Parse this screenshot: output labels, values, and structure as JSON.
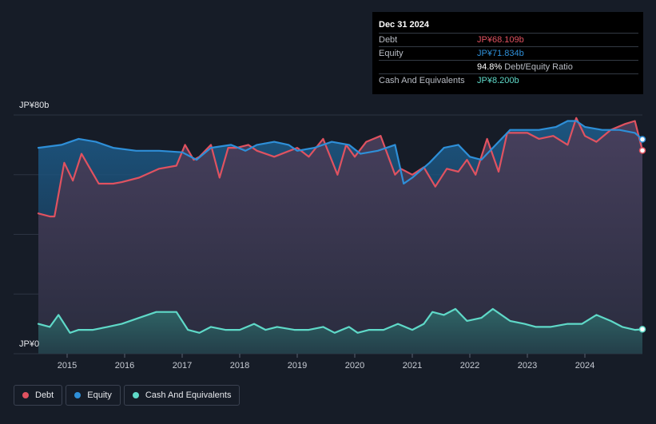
{
  "chart_data": {
    "type": "area",
    "y_axis": {
      "top_label": "JP¥80b",
      "bottom_label": "JP¥0",
      "ylim": [
        0,
        80
      ],
      "unit": "JP¥ billions"
    },
    "x_ticks": [
      "2015",
      "2016",
      "2017",
      "2018",
      "2019",
      "2020",
      "2021",
      "2022",
      "2023",
      "2024"
    ],
    "xlim": [
      2014.5,
      2025.0
    ],
    "grid": true,
    "legend_position": "bottom-left",
    "series": [
      {
        "name": "Debt",
        "color": "#e05260",
        "x": [
          2014.5,
          2014.7,
          2014.78,
          2014.95,
          2015.1,
          2015.25,
          2015.4,
          2015.55,
          2015.8,
          2015.95,
          2016.25,
          2016.6,
          2016.9,
          2017.05,
          2017.2,
          2017.3,
          2017.5,
          2017.65,
          2017.8,
          2017.95,
          2018.15,
          2018.3,
          2018.6,
          2018.8,
          2019.0,
          2019.2,
          2019.45,
          2019.7,
          2019.85,
          2020.0,
          2020.2,
          2020.45,
          2020.7,
          2020.8,
          2021.0,
          2021.2,
          2021.4,
          2021.6,
          2021.8,
          2021.95,
          2022.1,
          2022.3,
          2022.5,
          2022.65,
          2022.8,
          2023.0,
          2023.2,
          2023.45,
          2023.7,
          2023.85,
          2024.0,
          2024.2,
          2024.45,
          2024.7,
          2024.87,
          2025.0
        ],
        "values": [
          47,
          46,
          46,
          64,
          58,
          67,
          62,
          57,
          57,
          57.5,
          59,
          62,
          63,
          70,
          65,
          66,
          70,
          59,
          69,
          69,
          70,
          68,
          66,
          67.5,
          69,
          66,
          72,
          60,
          70,
          66,
          71,
          73,
          60,
          62,
          60,
          62.5,
          56,
          62,
          61,
          65,
          60,
          72,
          61,
          74,
          74,
          74,
          72,
          73,
          70,
          79,
          73,
          71,
          75,
          77,
          78,
          68.109
        ]
      },
      {
        "name": "Equity",
        "color": "#2e8fd8",
        "x": [
          2014.5,
          2014.9,
          2015.2,
          2015.5,
          2015.8,
          2016.2,
          2016.6,
          2017.0,
          2017.25,
          2017.5,
          2017.85,
          2018.1,
          2018.3,
          2018.6,
          2018.85,
          2019.0,
          2019.3,
          2019.6,
          2019.9,
          2020.1,
          2020.4,
          2020.7,
          2020.85,
          2021.0,
          2021.3,
          2021.55,
          2021.8,
          2022.0,
          2022.2,
          2022.45,
          2022.7,
          2022.95,
          2023.2,
          2023.5,
          2023.7,
          2023.85,
          2024.0,
          2024.3,
          2024.6,
          2024.87,
          2025.0
        ],
        "values": [
          69,
          70,
          72,
          71,
          69,
          68,
          68,
          67.5,
          65,
          69,
          70,
          68,
          70,
          71,
          70,
          68,
          69,
          71,
          70,
          67,
          68,
          70,
          57,
          59,
          64,
          69,
          70,
          66,
          65,
          70,
          75,
          75,
          75,
          76,
          78,
          78,
          76,
          75,
          75,
          74,
          71.834
        ]
      },
      {
        "name": "Cash And Equivalents",
        "color": "#5fd9c8",
        "x": [
          2014.5,
          2014.7,
          2014.85,
          2015.05,
          2015.2,
          2015.45,
          2015.7,
          2015.95,
          2016.25,
          2016.55,
          2016.9,
          2017.1,
          2017.3,
          2017.5,
          2017.75,
          2018.0,
          2018.25,
          2018.45,
          2018.65,
          2018.95,
          2019.2,
          2019.45,
          2019.65,
          2019.9,
          2020.05,
          2020.25,
          2020.5,
          2020.75,
          2021.0,
          2021.2,
          2021.35,
          2021.55,
          2021.75,
          2021.95,
          2022.2,
          2022.4,
          2022.7,
          2022.95,
          2023.15,
          2023.4,
          2023.7,
          2023.95,
          2024.2,
          2024.45,
          2024.65,
          2024.87,
          2025.0
        ],
        "values": [
          10,
          9,
          13,
          7,
          8,
          8,
          9,
          10,
          12,
          14,
          14,
          8,
          7,
          9,
          8,
          8,
          10,
          8,
          9,
          8,
          8,
          9,
          7,
          9,
          7,
          8,
          8,
          10,
          8,
          10,
          14,
          13,
          15,
          11,
          12,
          15,
          11,
          10,
          9,
          9,
          10,
          10,
          13,
          11,
          9,
          8,
          8.2
        ]
      }
    ],
    "tooltip": {
      "date": "Dec 31 2024",
      "rows": [
        {
          "label": "Debt",
          "value": "JP¥68.109b",
          "suffix": "",
          "color": "#e05260"
        },
        {
          "label": "Equity",
          "value": "JP¥71.834b",
          "suffix": "",
          "color": "#2e8fd8"
        },
        {
          "label": "",
          "value": "94.8%",
          "suffix": " Debt/Equity Ratio",
          "color": "#ffffff"
        },
        {
          "label": "Cash And Equivalents",
          "value": "JP¥8.200b",
          "suffix": "",
          "color": "#5fd9c8"
        }
      ]
    }
  },
  "legend": [
    {
      "label": "Debt",
      "color": "#e05260"
    },
    {
      "label": "Equity",
      "color": "#2e8fd8"
    },
    {
      "label": "Cash And Equivalents",
      "color": "#5fd9c8"
    }
  ]
}
